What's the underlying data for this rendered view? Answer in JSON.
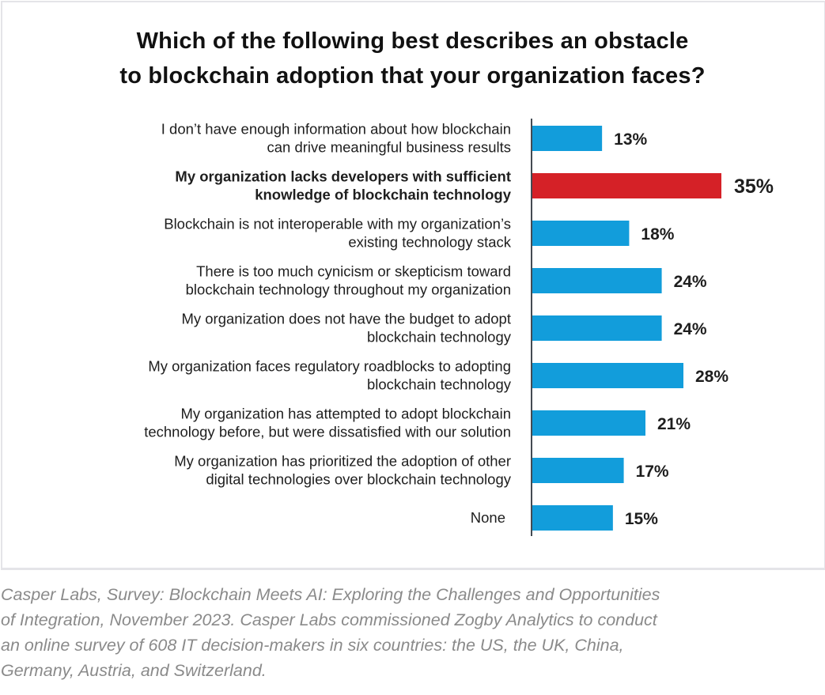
{
  "chart_data": {
    "type": "bar",
    "orientation": "horizontal",
    "title": "Which of the following best describes an obstacle to blockchain adoption that your organization faces?",
    "title_lines": [
      "Which of the following best describes an obstacle",
      "to blockchain adoption that your organization faces?"
    ],
    "xlabel": "",
    "ylabel": "",
    "xlim": [
      0,
      35
    ],
    "grid": false,
    "unit": "%",
    "categories": [
      [
        "I don’t have enough information about how blockchain",
        "can drive meaningful business results"
      ],
      [
        "My organization lacks developers with sufficient",
        "knowledge of blockchain technology"
      ],
      [
        "Blockchain is not interoperable with my organization’s",
        "existing technology stack"
      ],
      [
        "There is too much cynicism or skepticism toward",
        "blockchain technology throughout my organization"
      ],
      [
        "My organization does not have the budget to adopt",
        "blockchain technology"
      ],
      [
        "My organization faces regulatory roadblocks to adopting",
        "blockchain technology"
      ],
      [
        "My organization has attempted to adopt blockchain",
        "technology before, but were dissatisfied with our solution"
      ],
      [
        "My organization has prioritized the adoption of other",
        "digital technologies over blockchain technology"
      ],
      [
        "None"
      ]
    ],
    "values": [
      13,
      35,
      18,
      24,
      24,
      28,
      21,
      17,
      15
    ],
    "value_labels": [
      "13%",
      "35%",
      "18%",
      "24%",
      "24%",
      "28%",
      "21%",
      "17%",
      "15%"
    ],
    "highlight_index": 1,
    "colors": {
      "default": "#129ddb",
      "highlight": "#d52127",
      "axis": "#444a52",
      "text": "#1e1e1e"
    }
  },
  "source": {
    "lines": [
      "Casper Labs, Survey: Blockchain Meets AI: Exploring the Challenges and Opportunities",
      "of Integration, November 2023. Casper Labs commissioned Zogby Analytics to conduct",
      "an online survey of 608 IT decision-makers in six countries: the US, the UK, China,",
      "Germany, Austria, and Switzerland."
    ]
  }
}
